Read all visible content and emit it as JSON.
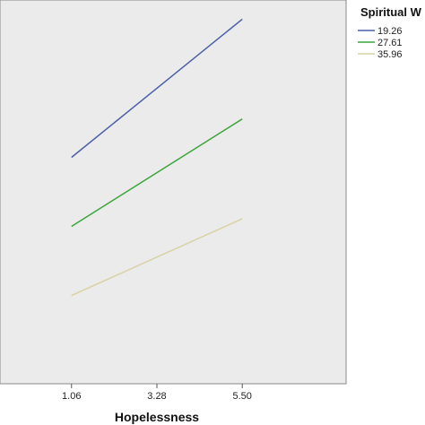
{
  "chart_data": {
    "type": "line",
    "title": "",
    "xlabel": "Hopelessness",
    "ylabel": "",
    "x": [
      "1.06",
      "3.28",
      "5.50"
    ],
    "xlim": [
      -0.8,
      8.2
    ],
    "ylim": [
      0,
      10
    ],
    "grid": false,
    "legend": {
      "title": "Spiritual W",
      "placement": "top-right outside"
    },
    "series": [
      {
        "name": "19.26",
        "color": "#4a5fa8",
        "points": [
          [
            1.06,
            5.9
          ],
          [
            5.5,
            9.5
          ]
        ]
      },
      {
        "name": "27.61",
        "color": "#3aa63a",
        "points": [
          [
            1.06,
            4.1
          ],
          [
            5.5,
            6.9
          ]
        ]
      },
      {
        "name": "35.96",
        "color": "#d8d2a6",
        "points": [
          [
            1.06,
            2.3
          ],
          [
            5.5,
            4.3
          ]
        ]
      }
    ],
    "plot_background": "#ebebeb"
  }
}
